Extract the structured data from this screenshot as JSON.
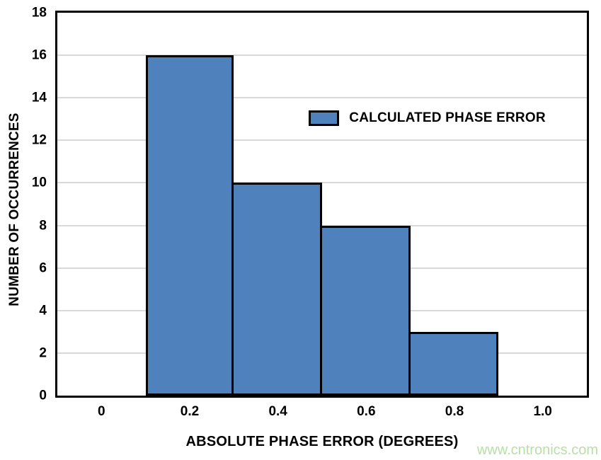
{
  "watermark": {
    "text": "www.cntronics.com",
    "color": "#b7dfa6"
  },
  "chart_data": {
    "type": "bar",
    "title": "",
    "xlabel": "ABSOLUTE PHASE ERROR (DEGREES)",
    "ylabel": "NUMBER OF OCCURRENCES",
    "categories": [
      "0",
      "0.2",
      "0.4",
      "0.6",
      "0.8",
      "1.0"
    ],
    "values": [
      0,
      16,
      10,
      8,
      3,
      0
    ],
    "y_ticks": [
      0,
      2,
      4,
      6,
      8,
      10,
      12,
      14,
      16,
      18
    ],
    "ylim": [
      0,
      18
    ],
    "grid": "horizontal",
    "gridline_color": "#D9D9D9",
    "bar_color": "#4F81BD",
    "bar_border_color": "#000000",
    "legend_position": "inside-upper-right",
    "legend": [
      {
        "label": "CALCULATED PHASE ERROR",
        "swatch_color": "#4F81BD"
      }
    ]
  }
}
